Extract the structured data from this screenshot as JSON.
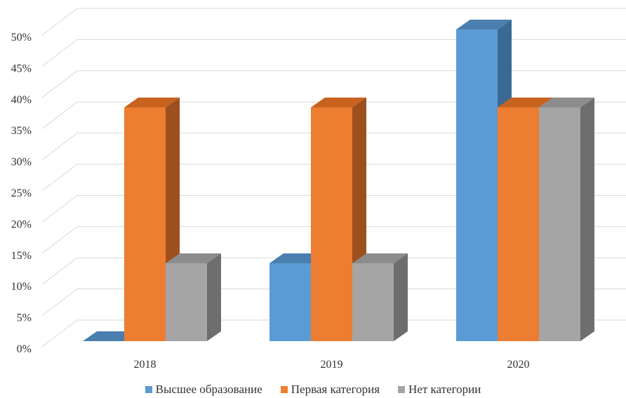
{
  "chart_data": {
    "type": "bar",
    "title": "",
    "xlabel": "",
    "ylabel": "",
    "categories": [
      "2018",
      "2019",
      "2020"
    ],
    "series": [
      {
        "name": "Высшее образование",
        "values": [
          0,
          12.5,
          50
        ],
        "color": "#5B9BD5",
        "side_color": "#3A6A94",
        "top_color": "#4A7FB0"
      },
      {
        "name": "Первая категория",
        "values": [
          37.5,
          37.5,
          37.5
        ],
        "color": "#ED7D31",
        "side_color": "#9E4F1E",
        "top_color": "#C8621F"
      },
      {
        "name": "Нет категории",
        "values": [
          12.5,
          12.5,
          37.5
        ],
        "color": "#A5A5A5",
        "side_color": "#6E6E6E",
        "top_color": "#8C8C8C"
      }
    ],
    "ylim": [
      0,
      50
    ],
    "yticks": [
      "0%",
      "5%",
      "10%",
      "15%",
      "20%",
      "25%",
      "30%",
      "35%",
      "40%",
      "45%",
      "50%"
    ],
    "grid": true,
    "legend_position": "bottom",
    "style": "3d-clustered-column"
  }
}
